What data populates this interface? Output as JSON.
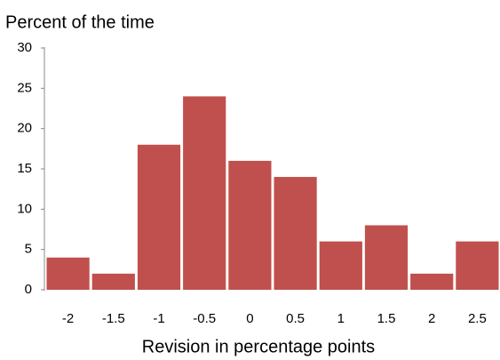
{
  "chart_data": {
    "type": "bar",
    "y_axis_label": "Percent of the time",
    "x_axis_label": "Revision in percentage points",
    "categories": [
      "-2",
      "-1.5",
      "-1",
      "-0.5",
      "0",
      "0.5",
      "1",
      "1.5",
      "2",
      "2.5"
    ],
    "values": [
      4,
      2,
      18,
      24,
      16,
      14,
      6,
      8,
      2,
      6
    ],
    "color": "#c0504d",
    "ylim": [
      0,
      30
    ],
    "yticks": [
      0,
      5,
      10,
      15,
      20,
      25,
      30
    ],
    "grid": false
  }
}
